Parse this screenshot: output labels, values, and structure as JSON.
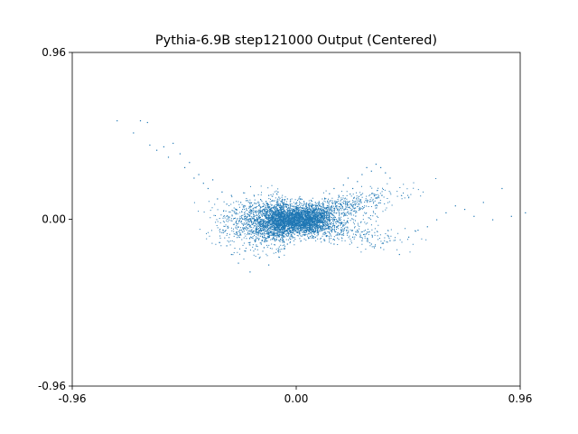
{
  "chart_data": {
    "type": "scatter",
    "title": "Pythia-6.9B step121000 Output (Centered)",
    "xlabel": "",
    "ylabel": "",
    "xlim": [
      -0.96,
      0.96
    ],
    "ylim": [
      -0.96,
      0.96
    ],
    "xticks": [
      "-0.96",
      "0.00",
      "0.96"
    ],
    "yticks": [
      "-0.96",
      "0.00",
      "0.96"
    ],
    "grid": false,
    "legend": "none",
    "point_color": "#1f77b4",
    "series": [
      {
        "distribution": "dense bowtie-shaped cloud centered near (0, 0); dense core spans roughly x in [-0.2, 0.5], y in [-0.15, 0.18]; sparse tails extend up-left to about (-0.78, 0.57) and right to about (0.98, 0.04)",
        "points": [
          [
            -0.77,
            0.57
          ],
          [
            -0.7,
            0.5
          ],
          [
            -0.67,
            0.57
          ],
          [
            -0.64,
            0.56
          ],
          [
            -0.63,
            0.43
          ],
          [
            -0.6,
            0.4
          ],
          [
            -0.57,
            0.42
          ],
          [
            -0.55,
            0.36
          ],
          [
            -0.53,
            0.44
          ],
          [
            -0.5,
            0.38
          ],
          [
            -0.48,
            0.3
          ],
          [
            -0.46,
            0.33
          ],
          [
            -0.44,
            0.24
          ],
          [
            -0.42,
            0.26
          ],
          [
            -0.4,
            0.21
          ],
          [
            -0.38,
            0.18
          ],
          [
            -0.36,
            0.23
          ],
          [
            -0.34,
            0.12
          ],
          [
            -0.32,
            0.16
          ],
          [
            -0.3,
            0.09
          ],
          [
            -0.28,
            0.14
          ],
          [
            -0.26,
            0.06
          ],
          [
            -0.24,
            0.1
          ],
          [
            -0.22,
            0.02
          ],
          [
            -0.2,
            0.07
          ],
          [
            -0.3,
            -0.15
          ],
          [
            -0.28,
            -0.2
          ],
          [
            -0.25,
            -0.25
          ],
          [
            -0.22,
            -0.18
          ],
          [
            -0.2,
            -0.3
          ],
          [
            -0.18,
            -0.12
          ],
          [
            -0.16,
            -0.22
          ],
          [
            -0.14,
            -0.16
          ],
          [
            -0.12,
            -0.26
          ],
          [
            -0.1,
            -0.1
          ],
          [
            -0.08,
            -0.18
          ],
          [
            -0.06,
            -0.08
          ],
          [
            -0.04,
            -0.14
          ],
          [
            -0.02,
            -0.05
          ],
          [
            0.0,
            -0.02
          ],
          [
            0.02,
            0.02
          ],
          [
            0.04,
            0.05
          ],
          [
            0.06,
            0.08
          ],
          [
            0.08,
            0.1
          ],
          [
            0.1,
            0.06
          ],
          [
            0.12,
            0.12
          ],
          [
            0.14,
            0.15
          ],
          [
            0.16,
            0.18
          ],
          [
            0.18,
            0.14
          ],
          [
            0.2,
            0.2
          ],
          [
            0.22,
            0.24
          ],
          [
            0.24,
            0.18
          ],
          [
            0.26,
            0.22
          ],
          [
            0.28,
            0.26
          ],
          [
            0.3,
            0.3
          ],
          [
            0.32,
            0.28
          ],
          [
            0.34,
            0.32
          ],
          [
            0.36,
            0.3
          ],
          [
            0.38,
            0.27
          ],
          [
            0.4,
            0.24
          ],
          [
            0.2,
            -0.08
          ],
          [
            0.24,
            -0.1
          ],
          [
            0.28,
            -0.12
          ],
          [
            0.32,
            -0.14
          ],
          [
            0.36,
            -0.16
          ],
          [
            0.4,
            -0.12
          ],
          [
            0.44,
            -0.2
          ],
          [
            0.48,
            -0.1
          ],
          [
            0.52,
            -0.06
          ],
          [
            0.56,
            -0.04
          ],
          [
            0.6,
            0.0
          ],
          [
            0.64,
            0.04
          ],
          [
            0.68,
            0.08
          ],
          [
            0.72,
            0.06
          ],
          [
            0.76,
            0.02
          ],
          [
            0.8,
            0.1
          ],
          [
            0.84,
            0.0
          ],
          [
            0.88,
            0.18
          ],
          [
            0.92,
            0.02
          ],
          [
            0.98,
            0.04
          ],
          [
            -0.12,
            0.14
          ],
          [
            -0.08,
            0.16
          ],
          [
            -0.04,
            0.12
          ],
          [
            0.0,
            0.1
          ],
          [
            0.04,
            -0.06
          ],
          [
            0.08,
            -0.1
          ],
          [
            0.12,
            -0.12
          ],
          [
            0.16,
            -0.14
          ],
          [
            -0.1,
            0.04
          ],
          [
            0.06,
            0.0
          ]
        ]
      }
    ]
  }
}
